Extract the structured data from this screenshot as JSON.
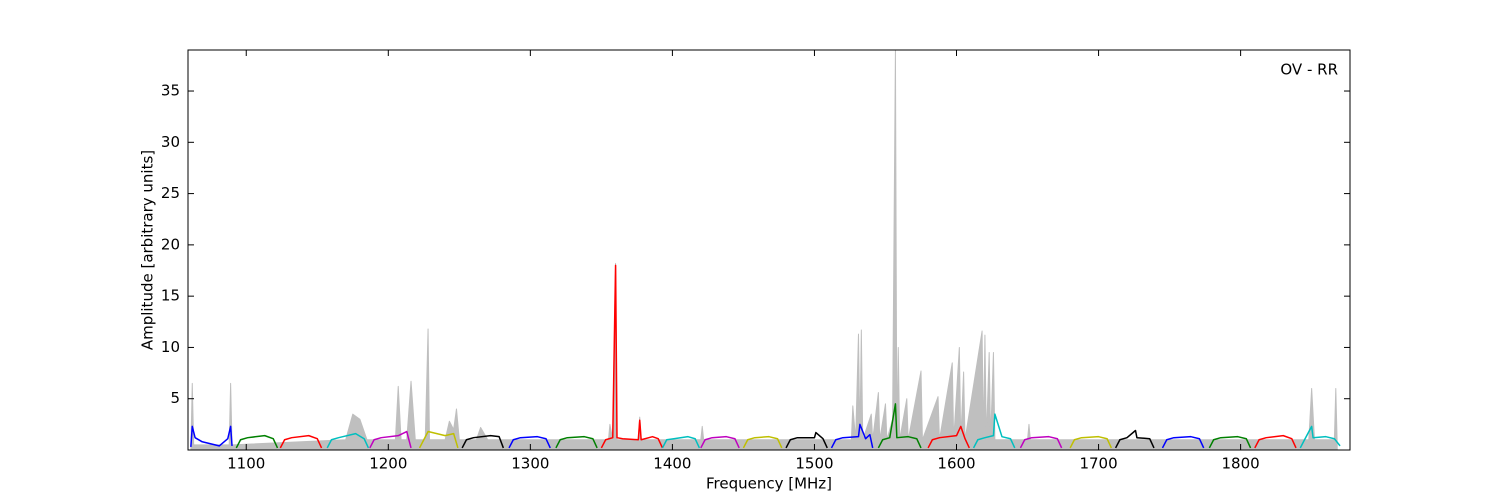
{
  "chart_data": {
    "type": "line",
    "annotation": "OV - RR",
    "xlabel": "Frequency [MHz]",
    "ylabel": "Amplitude [arbitrary units]",
    "xlim": [
      1059,
      1877
    ],
    "ylim": [
      0,
      39
    ],
    "xticks": [
      1100,
      1200,
      1300,
      1400,
      1500,
      1600,
      1700,
      1800
    ],
    "yticks": [
      5,
      10,
      15,
      20,
      25,
      30,
      35
    ],
    "series": [
      {
        "color": "#bfbfbf",
        "area": true,
        "x": [
          1061,
          1062,
          1063,
          1088,
          1089,
          1090,
          1170,
          1175,
          1180,
          1185,
          1205,
          1207,
          1209,
          1213,
          1216,
          1219,
          1226,
          1228,
          1229,
          1240,
          1243,
          1246,
          1248,
          1250,
          1262,
          1265,
          1270,
          1355,
          1356,
          1358,
          1360,
          1361,
          1376,
          1377,
          1378,
          1420,
          1421,
          1422,
          1526,
          1527,
          1529,
          1531,
          1532,
          1533,
          1534,
          1540,
          1541,
          1545,
          1546,
          1550,
          1551,
          1555,
          1557,
          1558,
          1559,
          1560,
          1565,
          1566,
          1575,
          1576,
          1587,
          1588,
          1597,
          1598,
          1602,
          1603,
          1605,
          1606,
          1618,
          1619,
          1620,
          1621,
          1623,
          1624,
          1626,
          1627,
          1650,
          1651,
          1652,
          1848,
          1850,
          1852,
          1866,
          1867,
          1868
        ],
        "values": [
          0,
          6.5,
          0.5,
          0.5,
          6.5,
          0.5,
          1,
          3.5,
          3,
          1,
          1,
          6.2,
          1,
          1,
          6.7,
          1,
          1,
          11.8,
          1,
          1,
          2.8,
          2,
          4,
          1,
          1,
          2.2,
          1,
          1,
          2.5,
          1,
          18.2,
          1,
          1,
          3.2,
          1,
          1,
          2.3,
          1,
          1,
          4.3,
          1,
          11.3,
          1,
          11.7,
          1,
          3.5,
          1,
          5.6,
          1,
          4.5,
          1,
          3,
          39,
          1,
          10,
          1,
          5,
          1,
          7.7,
          1,
          5.2,
          1,
          8.5,
          1,
          10,
          1,
          7.6,
          1,
          11.6,
          1,
          11.2,
          1,
          9.5,
          1,
          9.5,
          1,
          1,
          2.5,
          1,
          1,
          6,
          1,
          1,
          6,
          0.5
        ]
      },
      {
        "color": "#0000ff",
        "x": [
          1061,
          1062,
          1064,
          1069,
          1081,
          1087,
          1089,
          1090
        ],
        "values": [
          0.3,
          2.3,
          1.2,
          0.8,
          0.4,
          1.1,
          2.3,
          0.4
        ]
      },
      {
        "color": "#008000",
        "x": [
          1093,
          1096,
          1101,
          1113,
          1119,
          1122
        ],
        "values": [
          0.2,
          1,
          1.2,
          1.4,
          1.1,
          0.2
        ]
      },
      {
        "color": "#ff0000",
        "x": [
          1124,
          1127,
          1132,
          1144,
          1150,
          1153
        ],
        "values": [
          0.2,
          1,
          1.2,
          1.4,
          1.1,
          0.2
        ]
      },
      {
        "color": "#00bfbf",
        "x": [
          1157,
          1160,
          1165,
          1177,
          1183,
          1186
        ],
        "values": [
          0.2,
          1,
          1.2,
          1.6,
          1.1,
          0.2
        ]
      },
      {
        "color": "#bf00bf",
        "x": [
          1187,
          1190,
          1195,
          1207,
          1213,
          1216
        ],
        "values": [
          0.2,
          1,
          1.2,
          1.4,
          1.8,
          0.2
        ]
      },
      {
        "color": "#bfbf00",
        "x": [
          1222,
          1225,
          1228,
          1240,
          1246,
          1249
        ],
        "values": [
          0.2,
          1,
          1.8,
          1.4,
          1.6,
          0.2
        ]
      },
      {
        "color": "#000000",
        "x": [
          1252,
          1255,
          1260,
          1272,
          1278,
          1281
        ],
        "values": [
          0.2,
          1,
          1.2,
          1.4,
          1.3,
          0.2
        ]
      },
      {
        "color": "#0000ff",
        "x": [
          1285,
          1288,
          1293,
          1305,
          1311,
          1314
        ],
        "values": [
          0.2,
          1,
          1.2,
          1.3,
          1.1,
          0.2
        ]
      },
      {
        "color": "#008000",
        "x": [
          1318,
          1321,
          1326,
          1338,
          1344,
          1347
        ],
        "values": [
          0.2,
          1,
          1.2,
          1.3,
          1.1,
          0.2
        ]
      },
      {
        "color": "#ff0000",
        "x": [
          1350,
          1353,
          1358,
          1360,
          1361,
          1365,
          1376,
          1377,
          1378,
          1386,
          1390,
          1393
        ],
        "values": [
          0.2,
          1,
          1.2,
          18,
          1.2,
          1.1,
          1,
          2.9,
          1,
          1.3,
          1.1,
          0.2
        ]
      },
      {
        "color": "#00bfbf",
        "x": [
          1393,
          1396,
          1401,
          1411,
          1416,
          1419
        ],
        "values": [
          0.2,
          1,
          1.1,
          1.3,
          1.1,
          0.2
        ]
      },
      {
        "color": "#bf00bf",
        "x": [
          1420,
          1423,
          1428,
          1438,
          1444,
          1447
        ],
        "values": [
          0.2,
          1,
          1.2,
          1.3,
          1.1,
          0.2
        ]
      },
      {
        "color": "#bfbf00",
        "x": [
          1450,
          1453,
          1458,
          1468,
          1474,
          1477
        ],
        "values": [
          0.2,
          1,
          1.2,
          1.3,
          1.1,
          0.2
        ]
      },
      {
        "color": "#000000",
        "x": [
          1480,
          1483,
          1488,
          1500,
          1501,
          1506,
          1509
        ],
        "values": [
          0.2,
          1,
          1.2,
          1.2,
          1.7,
          1.1,
          0.2
        ]
      },
      {
        "color": "#0000ff",
        "x": [
          1512,
          1515,
          1520,
          1531,
          1532,
          1536,
          1539,
          1541
        ],
        "values": [
          0.2,
          1,
          1.2,
          1.3,
          2.5,
          1.1,
          1.5,
          0.2
        ]
      },
      {
        "color": "#008000",
        "x": [
          1545,
          1548,
          1553,
          1557,
          1558,
          1566,
          1572,
          1575
        ],
        "values": [
          0.2,
          1,
          1.2,
          4.5,
          1.2,
          1.3,
          1.1,
          0.2
        ]
      },
      {
        "color": "#ff0000",
        "x": [
          1580,
          1583,
          1588,
          1600,
          1603,
          1606,
          1609
        ],
        "values": [
          0.2,
          1,
          1.2,
          1.4,
          2.3,
          1.1,
          0.2
        ]
      },
      {
        "color": "#00bfbf",
        "x": [
          1612,
          1615,
          1620,
          1626,
          1627,
          1632,
          1638,
          1641
        ],
        "values": [
          0.2,
          1,
          1.2,
          1.4,
          3.5,
          1.3,
          1.1,
          0.2
        ]
      },
      {
        "color": "#bf00bf",
        "x": [
          1645,
          1648,
          1653,
          1665,
          1671,
          1674
        ],
        "values": [
          0.2,
          1,
          1.2,
          1.3,
          1.1,
          0.2
        ]
      },
      {
        "color": "#bfbf00",
        "x": [
          1680,
          1683,
          1688,
          1700,
          1706,
          1709
        ],
        "values": [
          0.2,
          1,
          1.2,
          1.3,
          1.1,
          0.2
        ]
      },
      {
        "color": "#000000",
        "x": [
          1712,
          1715,
          1720,
          1726,
          1727,
          1736,
          1739
        ],
        "values": [
          0.2,
          1,
          1.2,
          1.9,
          1.2,
          1.1,
          0.2
        ]
      },
      {
        "color": "#0000ff",
        "x": [
          1745,
          1748,
          1753,
          1765,
          1771,
          1774
        ],
        "values": [
          0.2,
          1,
          1.2,
          1.3,
          1.1,
          0.2
        ]
      },
      {
        "color": "#008000",
        "x": [
          1778,
          1781,
          1786,
          1798,
          1804,
          1807
        ],
        "values": [
          0.2,
          1,
          1.2,
          1.3,
          1.1,
          0.2
        ]
      },
      {
        "color": "#ff0000",
        "x": [
          1810,
          1813,
          1818,
          1830,
          1836,
          1839
        ],
        "values": [
          0.2,
          1,
          1.2,
          1.4,
          1.1,
          0.2
        ]
      },
      {
        "color": "#00bfbf",
        "x": [
          1842,
          1845,
          1850,
          1851,
          1860,
          1866,
          1870
        ],
        "values": [
          0.2,
          1,
          2.3,
          1.2,
          1.3,
          1.1,
          0.4
        ]
      }
    ]
  }
}
